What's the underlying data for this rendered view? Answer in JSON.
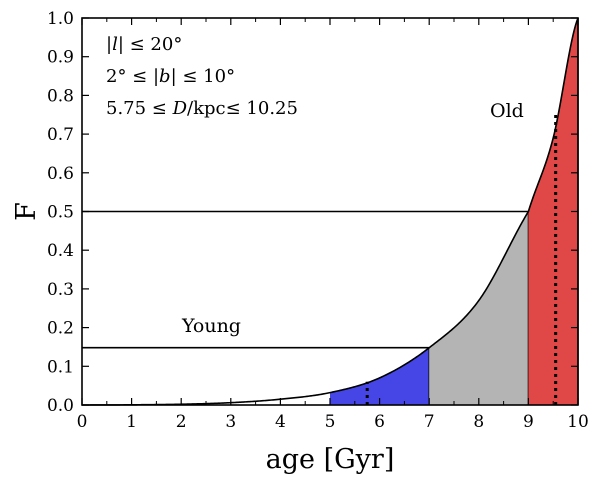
{
  "chart_data": {
    "type": "area",
    "xlabel": "age [Gyr]",
    "ylabel": "F",
    "xlim": [
      0,
      10
    ],
    "ylim": [
      0,
      1.0
    ],
    "xticks": [
      "0",
      "1",
      "2",
      "3",
      "4",
      "5",
      "6",
      "7",
      "8",
      "9",
      "10"
    ],
    "yticks": [
      "0.0",
      "0.1",
      "0.2",
      "0.3",
      "0.4",
      "0.5",
      "0.6",
      "0.7",
      "0.8",
      "0.9",
      "1.0"
    ],
    "annotations": {
      "line1_pre": "|",
      "line1_var": "l",
      "line1_post": "| ≤ 20°",
      "line2_pre": "2° ≤ |",
      "line2_var": "b",
      "line2_post": "| ≤ 10°",
      "line3_pre": "5.75 ≤ ",
      "line3_var": "D",
      "line3_post": "/kpc≤ 10.25"
    },
    "region_labels": {
      "young": "Young",
      "old": "Old"
    },
    "curve": {
      "x": [
        0,
        1,
        2,
        3,
        4,
        5,
        6,
        7,
        8,
        9,
        9.5,
        10
      ],
      "y": [
        0,
        0.0005,
        0.002,
        0.006,
        0.015,
        0.032,
        0.07,
        0.148,
        0.27,
        0.5,
        0.69,
        1.0
      ]
    },
    "regions": [
      {
        "name": "young",
        "x0": 5,
        "x1": 7,
        "color": "#4646e6"
      },
      {
        "name": "intermediate",
        "x0": 7,
        "x1": 9,
        "color": "#b4b4b4"
      },
      {
        "name": "old",
        "x0": 9,
        "x1": 10,
        "color": "#e04848"
      }
    ],
    "thresholds": [
      {
        "y": 0.148,
        "x_end": 7
      },
      {
        "y": 0.5,
        "x_end": 9
      }
    ],
    "dotted_markers": [
      {
        "x": 5.75,
        "y_top": 0.06
      },
      {
        "x": 9.55,
        "y_top": 0.75
      }
    ]
  }
}
